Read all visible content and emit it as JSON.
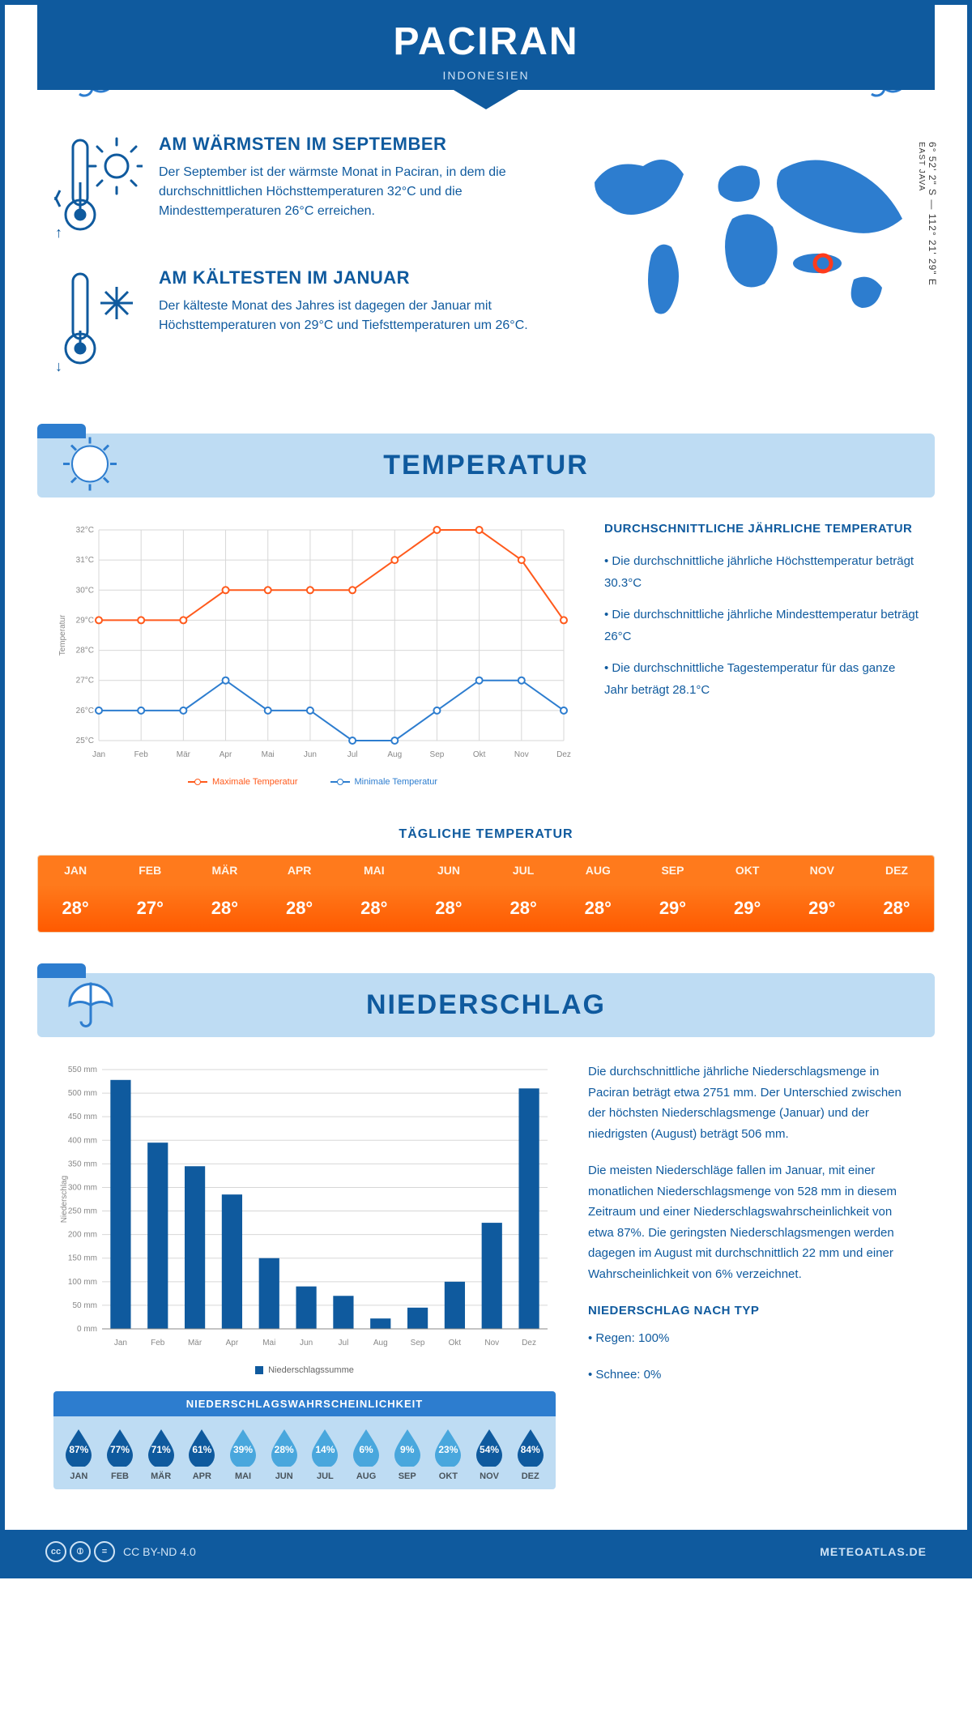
{
  "header": {
    "title": "PACIRAN",
    "subtitle": "INDONESIEN"
  },
  "coords": {
    "line": "6° 52' 2\" S — 112° 21' 29\" E",
    "region": "EAST JAVA"
  },
  "intro": {
    "hot": {
      "title": "AM WÄRMSTEN IM SEPTEMBER",
      "text": "Der September ist der wärmste Monat in Paciran, in dem die durchschnittlichen Höchsttemperaturen 32°C und die Mindesttemperaturen 26°C erreichen."
    },
    "cold": {
      "title": "AM KÄLTESTEN IM JANUAR",
      "text": "Der kälteste Monat des Jahres ist dagegen der Januar mit Höchsttemperaturen von 29°C und Tiefsttemperaturen um 26°C."
    }
  },
  "months": [
    "Jan",
    "Feb",
    "Mär",
    "Apr",
    "Mai",
    "Jun",
    "Jul",
    "Aug",
    "Sep",
    "Okt",
    "Nov",
    "Dez"
  ],
  "monthsUpper": [
    "JAN",
    "FEB",
    "MÄR",
    "APR",
    "MAI",
    "JUN",
    "JUL",
    "AUG",
    "SEP",
    "OKT",
    "NOV",
    "DEZ"
  ],
  "temp": {
    "title": "TEMPERATUR",
    "chart": {
      "type": "line",
      "ylabel": "Temperatur",
      "ylim": [
        25,
        32
      ],
      "yticks": [
        "25°C",
        "26°C",
        "27°C",
        "28°C",
        "29°C",
        "30°C",
        "31°C",
        "32°C"
      ],
      "max_series": {
        "label": "Maximale Temperatur",
        "color": "#ff5a1c",
        "values": [
          29,
          29,
          29,
          30,
          30,
          30,
          30,
          31,
          32,
          32,
          31,
          29
        ]
      },
      "min_series": {
        "label": "Minimale Temperatur",
        "color": "#2d7dcf",
        "values": [
          26,
          26,
          26,
          27,
          26,
          26,
          25,
          25,
          26,
          27,
          27,
          26
        ]
      },
      "grid_color": "#d7d7d7",
      "label_fontsize": 10,
      "marker_style": "circle-open",
      "line_width": 2,
      "background": "#ffffff"
    },
    "summary": {
      "heading": "DURCHSCHNITTLICHE JÄHRLICHE TEMPERATUR",
      "b1": "• Die durchschnittliche jährliche Höchsttemperatur beträgt 30.3°C",
      "b2": "• Die durchschnittliche jährliche Mindesttemperatur beträgt 26°C",
      "b3": "• Die durchschnittliche Tagestemperatur für das ganze Jahr beträgt 28.1°C"
    },
    "daily": {
      "title": "TÄGLICHE TEMPERATUR",
      "values": [
        "28°",
        "27°",
        "28°",
        "28°",
        "28°",
        "28°",
        "28°",
        "28°",
        "29°",
        "29°",
        "29°",
        "28°"
      ],
      "header_bg": "#ff7a1c",
      "value_bg": "#ff5a00",
      "text_color": "#ffffff"
    }
  },
  "precip": {
    "title": "NIEDERSCHLAG",
    "chart": {
      "type": "bar",
      "ylabel": "Niederschlag",
      "ylim": [
        0,
        550
      ],
      "ytick_step": 50,
      "yticks": [
        "0 mm",
        "50 mm",
        "100 mm",
        "150 mm",
        "200 mm",
        "250 mm",
        "300 mm",
        "350 mm",
        "400 mm",
        "450 mm",
        "500 mm",
        "550 mm"
      ],
      "values": [
        528,
        395,
        345,
        285,
        150,
        90,
        70,
        22,
        45,
        100,
        225,
        510
      ],
      "bar_color": "#0f5a9e",
      "legend": "Niederschlagssumme",
      "grid_color": "#d7d7d7",
      "label_fontsize": 10,
      "bar_width": 0.55,
      "background": "#ffffff"
    },
    "text": {
      "p1": "Die durchschnittliche jährliche Niederschlagsmenge in Paciran beträgt etwa 2751 mm. Der Unterschied zwischen der höchsten Niederschlagsmenge (Januar) und der niedrigsten (August) beträgt 506 mm.",
      "p2": "Die meisten Niederschläge fallen im Januar, mit einer monatlichen Niederschlagsmenge von 528 mm in diesem Zeitraum und einer Niederschlagswahrscheinlichkeit von etwa 87%. Die geringsten Niederschlagsmengen werden dagegen im August mit durchschnittlich 22 mm und einer Wahrscheinlichkeit von 6% verzeichnet.",
      "type_heading": "NIEDERSCHLAG NACH TYP",
      "type_rain": "• Regen: 100%",
      "type_snow": "• Schnee: 0%"
    },
    "prob": {
      "title": "NIEDERSCHLAGSWAHRSCHEINLICHKEIT",
      "values": [
        "87%",
        "77%",
        "71%",
        "61%",
        "39%",
        "28%",
        "14%",
        "6%",
        "9%",
        "23%",
        "54%",
        "84%"
      ],
      "raw": [
        87,
        77,
        71,
        61,
        39,
        28,
        14,
        6,
        9,
        23,
        54,
        84
      ],
      "header_bg": "#2d7dcf",
      "row_bg": "#bedcf3",
      "drop_dark": "#0f5a9e",
      "drop_light": "#49a7dd"
    }
  },
  "footer": {
    "license": "CC BY-ND 4.0",
    "site": "METEOATLAS.DE"
  },
  "colors": {
    "brand_dark": "#0f5a9e",
    "brand_mid": "#2d7dcf",
    "brand_light": "#bedcf3",
    "orange": "#ff5a1c"
  }
}
